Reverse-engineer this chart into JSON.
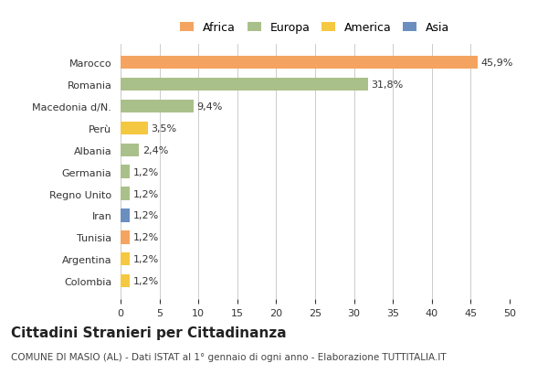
{
  "categories": [
    "Marocco",
    "Romania",
    "Macedonia d/N.",
    "Perù",
    "Albania",
    "Germania",
    "Regno Unito",
    "Iran",
    "Tunisia",
    "Argentina",
    "Colombia"
  ],
  "values": [
    45.9,
    31.8,
    9.4,
    3.5,
    2.4,
    1.2,
    1.2,
    1.2,
    1.2,
    1.2,
    1.2
  ],
  "labels": [
    "45,9%",
    "31,8%",
    "9,4%",
    "3,5%",
    "2,4%",
    "1,2%",
    "1,2%",
    "1,2%",
    "1,2%",
    "1,2%",
    "1,2%"
  ],
  "colors": [
    "#F4A460",
    "#AAC08A",
    "#AAC08A",
    "#F5C842",
    "#AAC08A",
    "#AAC08A",
    "#AAC08A",
    "#6A8FBF",
    "#F4A460",
    "#F5C842",
    "#F5C842"
  ],
  "legend_labels": [
    "Africa",
    "Europa",
    "America",
    "Asia"
  ],
  "legend_colors": [
    "#F4A460",
    "#AAC08A",
    "#F5C842",
    "#6A8FBF"
  ],
  "xlim": [
    0,
    50
  ],
  "xticks": [
    0,
    5,
    10,
    15,
    20,
    25,
    30,
    35,
    40,
    45,
    50
  ],
  "title": "Cittadini Stranieri per Cittadinanza",
  "subtitle": "COMUNE DI MASIO (AL) - Dati ISTAT al 1° gennaio di ogni anno - Elaborazione TUTTITALIA.IT",
  "background_color": "#ffffff",
  "grid_color": "#cccccc"
}
